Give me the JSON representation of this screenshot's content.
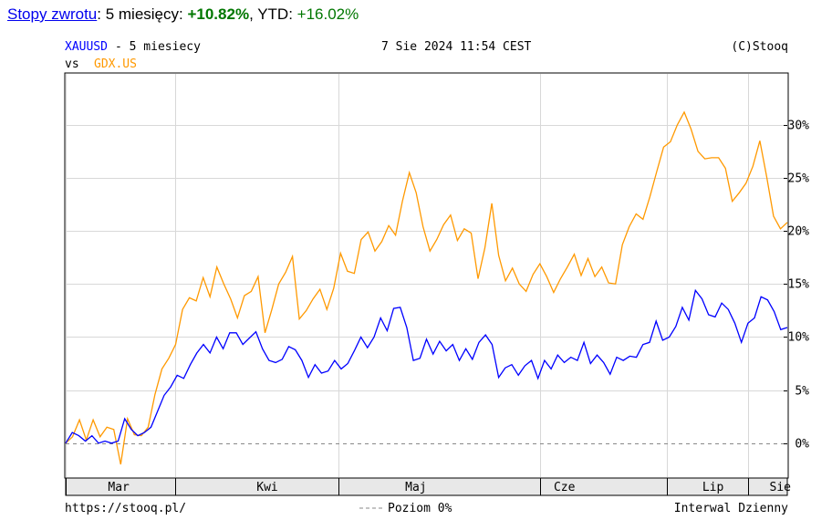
{
  "header": {
    "link_label": "Stopy zwrotu",
    "period_text": ": 5 miesięcy: ",
    "period_value": "+10.82%",
    "ytd_text": ", YTD: ",
    "ytd_value": "+16.02%"
  },
  "chart_header": {
    "symbol": "XAUUSD",
    "period": " - 5 miesiecy",
    "timestamp": "7 Sie 2024 11:54 CEST",
    "copyright": "(C)Stooq",
    "vs_label": "vs",
    "compare_symbol": "GDX.US"
  },
  "footer": {
    "url": "https://stooq.pl/",
    "legend_label": "Poziom 0%",
    "interval": "Interwal Dzienny"
  },
  "colors": {
    "xauusd": "#0000ff",
    "gdx": "#ff9900",
    "grid": "#d8d8d8",
    "zero_line": "#888888",
    "axis_band": "#e8e8e8"
  },
  "chart_data": {
    "type": "line",
    "title": "XAUUSD - 5 miesiecy vs GDX.US",
    "x_ticks": [
      "Mar",
      "Kwi",
      "Maj",
      "Cze",
      "Lip",
      "Sie"
    ],
    "y_ticks": [
      "0%",
      "5%",
      "10%",
      "15%",
      "20%",
      "25%",
      "30%"
    ],
    "y_tick_values": [
      0,
      5,
      10,
      15,
      20,
      25,
      30
    ],
    "ylim": [
      -3.2,
      34.8
    ],
    "xlim": [
      0,
      102
    ],
    "tick_positions": [
      7.5,
      28.5,
      49.5,
      70.5,
      91.5,
      101
    ],
    "grid": true,
    "series": [
      {
        "name": "XAUUSD",
        "values": [
          0.0,
          1.0,
          0.7,
          0.2,
          0.7,
          0.0,
          0.2,
          0.0,
          0.2,
          2.3,
          1.3,
          0.7,
          1.0,
          1.5,
          3.0,
          4.5,
          5.3,
          6.4,
          6.1,
          7.4,
          8.5,
          9.3,
          8.5,
          10.0,
          8.9,
          10.4,
          10.4,
          9.3,
          9.9,
          10.5,
          8.9,
          7.8,
          7.6,
          7.9,
          9.1,
          8.8,
          7.8,
          6.2,
          7.4,
          6.6,
          6.8,
          7.8,
          7.0,
          7.5,
          8.7,
          10.0,
          9.0,
          10.0,
          11.8,
          10.6,
          12.7,
          12.8,
          10.9,
          7.8,
          8.0,
          9.8,
          8.4,
          9.6,
          8.7,
          9.3,
          7.8,
          8.9,
          7.9,
          9.5,
          10.2,
          9.3,
          6.2,
          7.1,
          7.4,
          6.4,
          7.3,
          7.8,
          6.1,
          7.8,
          7.0,
          8.3,
          7.6,
          8.1,
          7.8,
          9.5,
          7.5,
          8.3,
          7.6,
          6.5,
          8.1,
          7.8,
          8.2,
          8.1,
          9.3,
          9.5,
          11.5,
          9.7,
          10.0,
          11.0,
          12.8,
          11.6,
          14.4,
          13.6,
          12.1,
          11.9,
          13.2,
          12.6,
          11.3,
          9.5,
          11.3,
          11.8,
          13.8,
          13.5,
          12.4,
          10.7,
          10.9
        ]
      },
      {
        "name": "GDX.US",
        "values": [
          0.0,
          0.6,
          2.2,
          0.3,
          2.2,
          0.6,
          1.5,
          1.3,
          -2.0,
          2.3,
          0.8,
          0.7,
          1.5,
          4.6,
          7.0,
          8.0,
          9.3,
          12.6,
          13.7,
          13.4,
          15.6,
          13.8,
          16.6,
          15.0,
          13.6,
          11.8,
          13.9,
          14.3,
          15.7,
          10.4,
          12.6,
          15.0,
          16.1,
          17.6,
          11.7,
          12.5,
          13.6,
          14.5,
          12.6,
          14.6,
          17.9,
          16.2,
          16.0,
          19.2,
          19.9,
          18.1,
          19.0,
          20.5,
          19.6,
          22.8,
          25.5,
          23.6,
          20.4,
          18.1,
          19.2,
          20.6,
          21.5,
          19.1,
          20.2,
          19.8,
          15.5,
          18.4,
          22.6,
          17.7,
          15.3,
          16.5,
          15.0,
          14.3,
          15.9,
          16.9,
          15.7,
          14.2,
          15.5,
          16.6,
          17.8,
          15.8,
          17.4,
          15.7,
          16.6,
          15.1,
          15.0,
          18.7,
          20.4,
          21.6,
          21.1,
          23.2,
          25.6,
          27.9,
          28.4,
          30.0,
          31.2,
          29.6,
          27.5,
          26.8,
          26.9,
          26.9,
          25.9,
          22.8,
          23.6,
          24.5,
          26.1,
          28.5,
          25.1,
          21.4,
          20.2,
          20.8
        ]
      }
    ]
  }
}
